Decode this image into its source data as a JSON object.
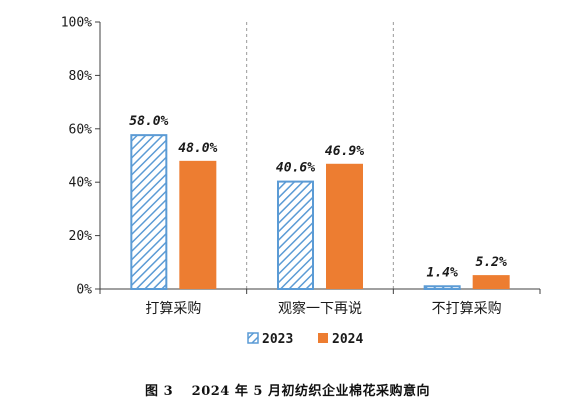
{
  "chart_data": {
    "type": "bar",
    "categories": [
      "打算采购",
      "观察一下再说",
      "不打算采购"
    ],
    "series": [
      {
        "name": "2023",
        "values": [
          58.0,
          40.6,
          1.4
        ],
        "color": "#5b9bd5",
        "pattern": "diagonal-hatch"
      },
      {
        "name": "2024",
        "values": [
          48.0,
          46.9,
          5.2
        ],
        "color": "#ed7d31",
        "pattern": "solid"
      }
    ],
    "data_labels": [
      [
        "58.0%",
        "40.6%",
        "1.4%"
      ],
      [
        "48.0%",
        "46.9%",
        "5.2%"
      ]
    ],
    "ylim": [
      0,
      100
    ],
    "yticks": [
      0,
      20,
      40,
      60,
      80,
      100
    ],
    "ytick_labels": [
      "0%",
      "20%",
      "40%",
      "60%",
      "80%",
      "100%"
    ],
    "grid": "vertical dashed separators between categories",
    "legend_position": "bottom",
    "title": "",
    "xlabel": "",
    "ylabel": ""
  },
  "caption": "图 3　 2024 年 5 月初纺织企业棉花采购意向"
}
